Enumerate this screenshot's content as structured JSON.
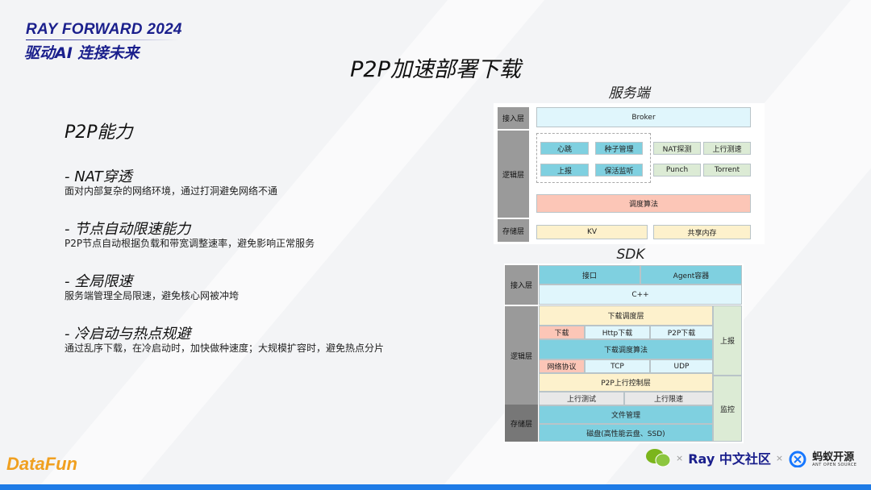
{
  "event": {
    "name": "RAY FORWARD 2024",
    "slogan": "驱动AI 连接未来"
  },
  "title": "P2P加速部署下载",
  "section": {
    "heading": "P2P能力",
    "items": [
      {
        "title": "-   NAT穿透",
        "desc": "面对内部复杂的网络环境，通过打洞避免网络不通"
      },
      {
        "title": "-   节点自动限速能力",
        "desc": "P2P节点自动根据负载和带宽调整速率，避免影响正常服务"
      },
      {
        "title": "-   全局限速",
        "desc": "服务端管理全局限速，避免核心网被冲垮"
      },
      {
        "title": "-   冷启动与热点规避",
        "desc": "通过乱序下载，在冷启动时，加快做种速度；大规模扩容时，避免热点分片"
      }
    ]
  },
  "server": {
    "caption": "服务端",
    "layers": [
      "接入层",
      "逻辑层",
      "存储层"
    ],
    "broker": "Broker",
    "heartbeat": "心跳",
    "seed": "种子管理",
    "report": "上报",
    "keepalive": "保活监听",
    "nat": "NAT探测",
    "upspeed": "上行测速",
    "punch": "Punch",
    "torrent": "Torrent",
    "sched": "调度算法",
    "kv": "KV",
    "shm": "共享内存"
  },
  "sdk": {
    "caption": "SDK",
    "layers": [
      "接入层",
      "逻辑层",
      "存储层"
    ],
    "api": "接口",
    "agent": "Agent容器",
    "cpp": "C++",
    "dl_layer": "下载调度层",
    "dl": "下载",
    "http": "Http下载",
    "p2p": "P2P下载",
    "dl_algo": "下载调度算法",
    "proto": "网络协议",
    "tcp": "TCP",
    "udp": "UDP",
    "p2p_up": "P2P上行控制层",
    "up_test": "上行测试",
    "up_limit": "上行限速",
    "report": "上报",
    "monitor": "监控",
    "file": "文件管理",
    "disk": "磁盘(高性能云盘、SSD)"
  },
  "footer": {
    "datafun": "DataFun",
    "ray": "Ray 中文社区",
    "ant": "蚂蚁开源",
    "ant_sub": "ANT OPEN SOURCE",
    "x": "×"
  },
  "colors": {
    "brand": "#1a1f8c",
    "footer_bar": "#1e7be6"
  }
}
